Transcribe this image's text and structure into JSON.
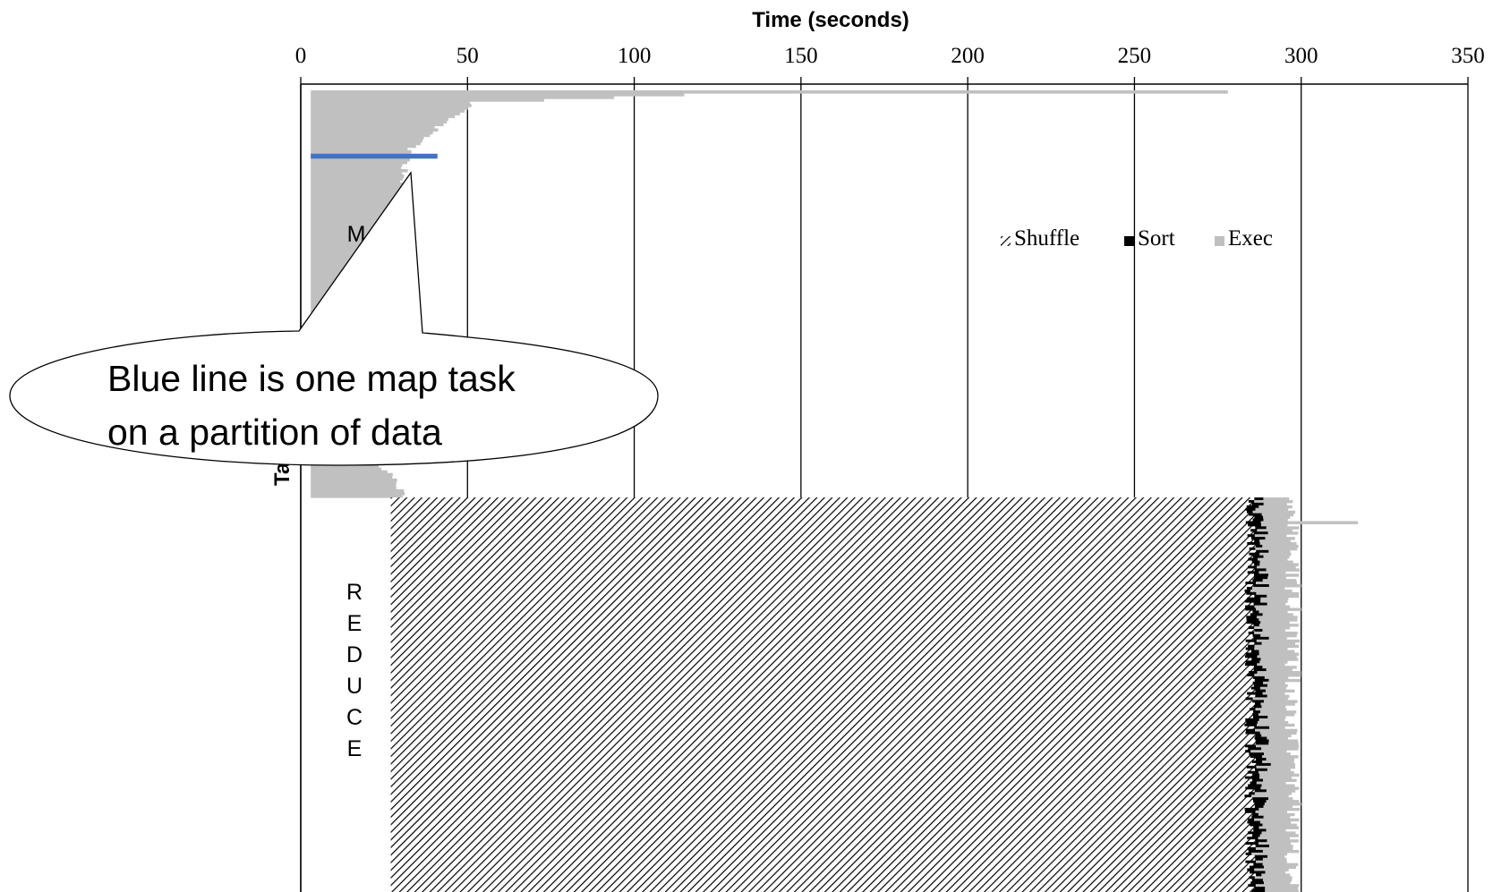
{
  "chart_data": {
    "type": "bar",
    "orientation": "horizontal",
    "stacked": true,
    "xlabel": "Time (seconds)",
    "ylabel": "Tasks",
    "xlim": [
      0,
      350
    ],
    "x_ticks": [
      0,
      50,
      100,
      150,
      200,
      250,
      300,
      350
    ],
    "x_tick_labels": [
      "0",
      "50",
      "100",
      "150",
      "200",
      "250",
      "300",
      "350"
    ],
    "grid": "vertical",
    "x_axis_position": "top",
    "legend": {
      "placement": "top-right",
      "entries": [
        {
          "name": "Shuffle",
          "style": "hatched"
        },
        {
          "name": "Sort",
          "color": "#000000"
        },
        {
          "name": "Exec",
          "color": "#c0c0c0"
        }
      ]
    },
    "phase_labels": {
      "map": "M",
      "reduce": "REDUCE"
    },
    "map_task_count": 150,
    "map_tasks_start": 3,
    "map_tasks_end_profile": [
      [
        0,
        278
      ],
      [
        1,
        115
      ],
      [
        4,
        52
      ],
      [
        10,
        44
      ],
      [
        22,
        32
      ],
      [
        40,
        30
      ],
      [
        55,
        22
      ],
      [
        90,
        5
      ],
      [
        110,
        5
      ],
      [
        140,
        26
      ],
      [
        149,
        31
      ]
    ],
    "highlighted_map_task": {
      "index": 24,
      "start": 3,
      "end": 41,
      "color": "#4472c4"
    },
    "reduce_task_count": 150,
    "reduce_shuffle_start": 27,
    "reduce_shuffle_end": 285,
    "reduce_sort_duration": 4,
    "reduce_end_typical": 297,
    "reduce_end_max": 317,
    "colors": {
      "exec": "#c0c0c0",
      "sort": "#000000",
      "shuffle_hatch": "#000000",
      "highlight": "#4472c4",
      "grid": "#000000"
    },
    "annotation": {
      "text_lines": [
        "Blue line is one map task",
        "on a partition of data"
      ],
      "points_to": {
        "x": 32,
        "task": "highlighted_map_task"
      }
    }
  }
}
